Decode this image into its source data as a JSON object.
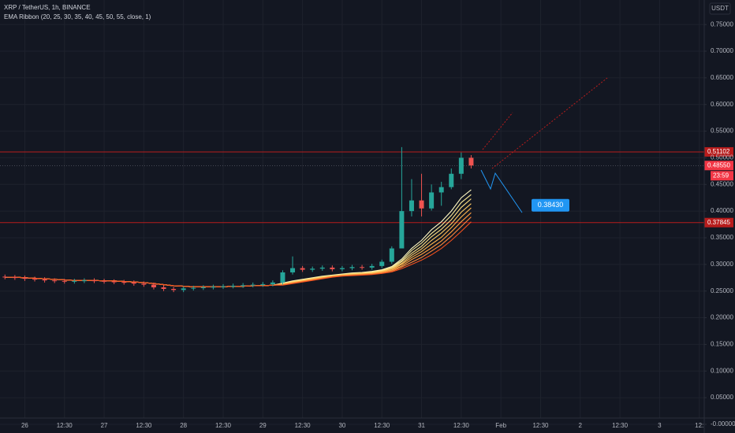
{
  "chart_data": {
    "type": "candlestick",
    "title": "XRP / TetherUS, 1h, BINANCE",
    "indicator": "EMA Ribbon (20, 25, 30, 35, 40, 45, 50, 55, close, 1)",
    "currency": "USDT",
    "up_color": "#26a69a",
    "down_color": "#ef5350",
    "grid": true,
    "categories": [
      null,
      null,
      "26",
      null,
      null,
      null,
      "12:30",
      null,
      null,
      null,
      "27",
      null,
      null,
      null,
      "12:30",
      null,
      null,
      null,
      "28",
      null,
      null,
      null,
      "12:30",
      null,
      null,
      null,
      "29",
      null,
      null,
      null,
      "12:30",
      null,
      null,
      null,
      "30",
      null,
      null,
      null,
      "12:30",
      null,
      null,
      null,
      "31",
      null,
      null,
      null,
      "12:30",
      null,
      null,
      null,
      "Feb",
      null,
      null,
      null,
      "12:30",
      null,
      null,
      null,
      "2",
      null,
      null,
      null,
      "12:30",
      null,
      null,
      null,
      "3",
      null,
      null,
      null,
      "12:"
    ],
    "open": [
      0.277,
      0.276,
      0.275,
      0.273,
      0.272,
      0.27,
      0.269,
      0.268,
      0.269,
      0.27,
      0.269,
      0.268,
      0.267,
      0.266,
      0.264,
      0.262,
      0.257,
      0.254,
      0.252,
      0.255,
      0.256,
      0.257,
      0.258,
      0.259,
      0.26,
      0.261,
      0.262,
      0.263,
      0.266,
      0.285,
      0.293,
      0.29,
      0.292,
      0.294,
      0.291,
      0.293,
      0.295,
      0.294,
      0.297,
      0.305,
      0.33,
      0.4,
      0.42,
      0.405,
      0.435,
      0.445,
      0.47,
      0.5,
      null,
      null,
      null,
      null,
      null,
      null,
      null,
      null,
      null,
      null,
      null,
      null,
      null,
      null,
      null,
      null,
      null,
      null,
      null,
      null,
      null,
      null,
      null
    ],
    "high": [
      0.281,
      0.28,
      0.279,
      0.277,
      0.276,
      0.274,
      0.273,
      0.273,
      0.274,
      0.274,
      0.273,
      0.272,
      0.271,
      0.27,
      0.268,
      0.266,
      0.261,
      0.258,
      0.259,
      0.26,
      0.261,
      0.262,
      0.263,
      0.264,
      0.265,
      0.266,
      0.267,
      0.27,
      0.289,
      0.315,
      0.297,
      0.296,
      0.298,
      0.298,
      0.297,
      0.299,
      0.299,
      0.301,
      0.309,
      0.334,
      0.52,
      0.46,
      0.47,
      0.45,
      0.455,
      0.48,
      0.51,
      0.505,
      null,
      null,
      null,
      null,
      null,
      null,
      null,
      null,
      null,
      null,
      null,
      null,
      null,
      null,
      null,
      null,
      null,
      null,
      null,
      null,
      null,
      null,
      null
    ],
    "low": [
      0.272,
      0.271,
      0.269,
      0.268,
      0.266,
      0.265,
      0.264,
      0.264,
      0.265,
      0.265,
      0.264,
      0.263,
      0.262,
      0.26,
      0.258,
      0.253,
      0.25,
      0.248,
      0.248,
      0.251,
      0.252,
      0.253,
      0.254,
      0.255,
      0.256,
      0.257,
      0.258,
      0.259,
      0.262,
      0.281,
      0.286,
      0.286,
      0.288,
      0.287,
      0.287,
      0.289,
      0.29,
      0.29,
      0.293,
      0.301,
      0.33,
      0.39,
      0.39,
      0.401,
      0.41,
      0.441,
      0.46,
      0.48,
      null,
      null,
      null,
      null,
      null,
      null,
      null,
      null,
      null,
      null,
      null,
      null,
      null,
      null,
      null,
      null,
      null,
      null,
      null,
      null,
      null,
      null,
      null
    ],
    "close": [
      0.276,
      0.275,
      0.273,
      0.272,
      0.27,
      0.269,
      0.268,
      0.269,
      0.27,
      0.269,
      0.268,
      0.267,
      0.266,
      0.264,
      0.262,
      0.257,
      0.254,
      0.252,
      0.255,
      0.256,
      0.257,
      0.258,
      0.259,
      0.26,
      0.261,
      0.262,
      0.263,
      0.266,
      0.285,
      0.293,
      0.29,
      0.292,
      0.294,
      0.291,
      0.293,
      0.295,
      0.294,
      0.297,
      0.305,
      0.33,
      0.4,
      0.42,
      0.405,
      0.435,
      0.445,
      0.47,
      0.5,
      0.4855,
      null,
      null,
      null,
      null,
      null,
      null,
      null,
      null,
      null,
      null,
      null,
      null,
      null,
      null,
      null,
      null,
      null,
      null,
      null,
      null,
      null,
      null,
      null
    ],
    "series": [
      {
        "color": "#fff9c4",
        "values": [
          0.276,
          0.276,
          0.275,
          0.274,
          0.273,
          0.272,
          0.271,
          0.27,
          0.27,
          0.27,
          0.269,
          0.269,
          0.268,
          0.267,
          0.266,
          0.264,
          0.262,
          0.26,
          0.259,
          0.258,
          0.258,
          0.258,
          0.258,
          0.259,
          0.259,
          0.26,
          0.26,
          0.261,
          0.265,
          0.269,
          0.272,
          0.275,
          0.278,
          0.28,
          0.282,
          0.284,
          0.285,
          0.287,
          0.29,
          0.296,
          0.31,
          0.33,
          0.345,
          0.365,
          0.38,
          0.4,
          0.425,
          0.44,
          null,
          null,
          null,
          null,
          null,
          null,
          null,
          null,
          null,
          null,
          null,
          null,
          null,
          null,
          null,
          null,
          null,
          null,
          null,
          null,
          null,
          null,
          null
        ]
      },
      {
        "color": "#ffee99",
        "values": [
          0.276,
          0.276,
          0.275,
          0.274,
          0.273,
          0.272,
          0.271,
          0.27,
          0.27,
          0.27,
          0.269,
          0.269,
          0.268,
          0.267,
          0.266,
          0.264,
          0.262,
          0.26,
          0.259,
          0.258,
          0.258,
          0.258,
          0.258,
          0.259,
          0.259,
          0.26,
          0.26,
          0.261,
          0.264,
          0.268,
          0.271,
          0.274,
          0.277,
          0.279,
          0.281,
          0.283,
          0.284,
          0.286,
          0.289,
          0.295,
          0.307,
          0.326,
          0.34,
          0.358,
          0.373,
          0.392,
          0.416,
          0.431,
          null,
          null,
          null,
          null,
          null,
          null,
          null,
          null,
          null,
          null,
          null,
          null,
          null,
          null,
          null,
          null,
          null,
          null,
          null,
          null,
          null,
          null,
          null
        ]
      },
      {
        "color": "#ffe082",
        "values": [
          0.276,
          0.276,
          0.275,
          0.274,
          0.273,
          0.272,
          0.271,
          0.27,
          0.27,
          0.27,
          0.269,
          0.269,
          0.268,
          0.267,
          0.266,
          0.264,
          0.262,
          0.26,
          0.259,
          0.258,
          0.258,
          0.258,
          0.258,
          0.259,
          0.259,
          0.26,
          0.26,
          0.261,
          0.264,
          0.268,
          0.271,
          0.274,
          0.277,
          0.279,
          0.281,
          0.283,
          0.284,
          0.285,
          0.288,
          0.293,
          0.305,
          0.321,
          0.334,
          0.352,
          0.366,
          0.384,
          0.407,
          0.423,
          null,
          null,
          null,
          null,
          null,
          null,
          null,
          null,
          null,
          null,
          null,
          null,
          null,
          null,
          null,
          null,
          null,
          null,
          null,
          null,
          null,
          null,
          null
        ]
      },
      {
        "color": "#ffcc66",
        "values": [
          0.276,
          0.276,
          0.275,
          0.274,
          0.273,
          0.272,
          0.271,
          0.27,
          0.27,
          0.27,
          0.269,
          0.269,
          0.268,
          0.267,
          0.266,
          0.264,
          0.262,
          0.26,
          0.259,
          0.258,
          0.258,
          0.258,
          0.258,
          0.259,
          0.259,
          0.26,
          0.26,
          0.261,
          0.263,
          0.267,
          0.27,
          0.273,
          0.276,
          0.278,
          0.28,
          0.282,
          0.283,
          0.284,
          0.287,
          0.292,
          0.302,
          0.317,
          0.329,
          0.345,
          0.359,
          0.376,
          0.398,
          0.414,
          null,
          null,
          null,
          null,
          null,
          null,
          null,
          null,
          null,
          null,
          null,
          null,
          null,
          null,
          null,
          null,
          null,
          null,
          null,
          null,
          null,
          null,
          null
        ]
      },
      {
        "color": "#ffb74d",
        "values": [
          0.276,
          0.276,
          0.275,
          0.274,
          0.273,
          0.272,
          0.271,
          0.27,
          0.27,
          0.27,
          0.269,
          0.269,
          0.268,
          0.267,
          0.266,
          0.264,
          0.262,
          0.26,
          0.259,
          0.258,
          0.258,
          0.258,
          0.258,
          0.259,
          0.259,
          0.26,
          0.26,
          0.261,
          0.263,
          0.266,
          0.269,
          0.272,
          0.275,
          0.278,
          0.28,
          0.281,
          0.282,
          0.283,
          0.286,
          0.29,
          0.3,
          0.313,
          0.324,
          0.338,
          0.351,
          0.369,
          0.389,
          0.406,
          null,
          null,
          null,
          null,
          null,
          null,
          null,
          null,
          null,
          null,
          null,
          null,
          null,
          null,
          null,
          null,
          null,
          null,
          null,
          null,
          null,
          null,
          null
        ]
      },
      {
        "color": "#ff9e40",
        "values": [
          0.276,
          0.276,
          0.275,
          0.274,
          0.273,
          0.272,
          0.271,
          0.27,
          0.27,
          0.27,
          0.269,
          0.269,
          0.268,
          0.267,
          0.266,
          0.264,
          0.262,
          0.26,
          0.259,
          0.258,
          0.258,
          0.258,
          0.258,
          0.259,
          0.259,
          0.26,
          0.26,
          0.261,
          0.262,
          0.265,
          0.268,
          0.271,
          0.274,
          0.277,
          0.279,
          0.28,
          0.281,
          0.282,
          0.285,
          0.289,
          0.297,
          0.309,
          0.319,
          0.331,
          0.344,
          0.361,
          0.38,
          0.397,
          null,
          null,
          null,
          null,
          null,
          null,
          null,
          null,
          null,
          null,
          null,
          null,
          null,
          null,
          null,
          null,
          null,
          null,
          null,
          null,
          null,
          null,
          null
        ]
      },
      {
        "color": "#ff8a3d",
        "values": [
          0.276,
          0.276,
          0.275,
          0.274,
          0.273,
          0.272,
          0.271,
          0.27,
          0.27,
          0.27,
          0.269,
          0.269,
          0.268,
          0.267,
          0.266,
          0.264,
          0.262,
          0.26,
          0.259,
          0.258,
          0.258,
          0.258,
          0.258,
          0.259,
          0.259,
          0.26,
          0.26,
          0.261,
          0.262,
          0.265,
          0.268,
          0.271,
          0.274,
          0.277,
          0.279,
          0.28,
          0.281,
          0.282,
          0.284,
          0.287,
          0.295,
          0.304,
          0.313,
          0.325,
          0.337,
          0.353,
          0.371,
          0.389,
          null,
          null,
          null,
          null,
          null,
          null,
          null,
          null,
          null,
          null,
          null,
          null,
          null,
          null,
          null,
          null,
          null,
          null,
          null,
          null,
          null,
          null,
          null
        ]
      },
      {
        "color": "#f4511e",
        "values": [
          0.276,
          0.276,
          0.275,
          0.274,
          0.273,
          0.272,
          0.271,
          0.27,
          0.27,
          0.27,
          0.269,
          0.269,
          0.268,
          0.267,
          0.266,
          0.264,
          0.262,
          0.26,
          0.259,
          0.258,
          0.258,
          0.258,
          0.258,
          0.259,
          0.259,
          0.26,
          0.26,
          0.261,
          0.261,
          0.264,
          0.267,
          0.27,
          0.273,
          0.276,
          0.278,
          0.279,
          0.28,
          0.281,
          0.283,
          0.286,
          0.292,
          0.3,
          0.308,
          0.318,
          0.33,
          0.345,
          0.362,
          0.38,
          null,
          null,
          null,
          null,
          null,
          null,
          null,
          null,
          null,
          null,
          null,
          null,
          null,
          null,
          null,
          null,
          null,
          null,
          null,
          null,
          null,
          null,
          null
        ]
      }
    ],
    "ylim": [
      -0.0015,
      0.796
    ],
    "yticks": [
      {
        "value": 0,
        "label": "-0.00000"
      },
      {
        "value": 0.05,
        "label": "0.05000"
      },
      {
        "value": 0.1,
        "label": "0.10000"
      },
      {
        "value": 0.15,
        "label": "0.15000"
      },
      {
        "value": 0.2,
        "label": "0.20000"
      },
      {
        "value": 0.25,
        "label": "0.25000"
      },
      {
        "value": 0.3,
        "label": "0.30000"
      },
      {
        "value": 0.35,
        "label": "0.35000"
      },
      {
        "value": 0.4,
        "label": "0.40000"
      },
      {
        "value": 0.45,
        "label": "0.45000"
      },
      {
        "value": 0.5,
        "label": "0.50000"
      },
      {
        "value": 0.55,
        "label": "0.55000"
      },
      {
        "value": 0.6,
        "label": "0.60000"
      },
      {
        "value": 0.65,
        "label": "0.65000"
      },
      {
        "value": 0.7,
        "label": "0.70000"
      },
      {
        "value": 0.75,
        "label": "0.75000"
      }
    ],
    "levels": [
      {
        "value": 0.51102,
        "label": "0.51102",
        "color": "#b71c1c"
      },
      {
        "value": 0.37845,
        "label": "0.37845",
        "color": "#b71c1c"
      }
    ],
    "last_price": {
      "value": 0.4855,
      "label": "0.48550",
      "color": "#f23645",
      "countdown": "23:59"
    },
    "target": {
      "value": 0.3843,
      "label": "0.38430",
      "color": "#2196f3"
    }
  }
}
